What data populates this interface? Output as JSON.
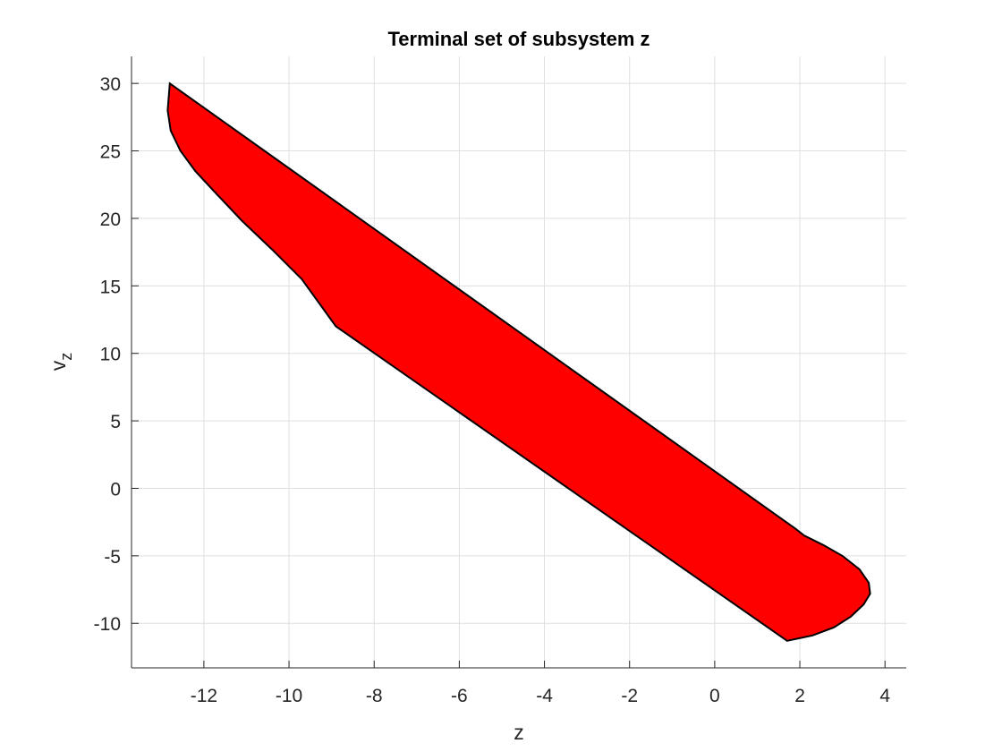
{
  "chart_data": {
    "type": "area",
    "title": "Terminal set of subsystem z",
    "xlabel": "z",
    "ylabel_main": "v",
    "ylabel_sub": "z",
    "xlim": [
      -13.7,
      4.5
    ],
    "ylim": [
      -13.3,
      32
    ],
    "xticks": [
      -12,
      -10,
      -8,
      -6,
      -4,
      -2,
      0,
      2,
      4
    ],
    "yticks": [
      -10,
      -5,
      0,
      5,
      10,
      15,
      20,
      25,
      30
    ],
    "grid": true,
    "fill_color": "#ff0000",
    "edge_color": "#000000",
    "series": [
      {
        "x": [
          -12.8,
          -12.85,
          -12.78,
          -12.55,
          -12.2,
          -11.7,
          -11.1,
          -10.4,
          -9.7,
          -8.9,
          1.7,
          2.3,
          2.8,
          3.2,
          3.5,
          3.65,
          3.62,
          3.4,
          3.0,
          2.55,
          2.1,
          1.9,
          -12.8
        ],
        "y": [
          30,
          28,
          26.5,
          25,
          23.5,
          21.8,
          19.8,
          17.7,
          15.5,
          12,
          -11.3,
          -10.9,
          -10.3,
          -9.5,
          -8.6,
          -7.8,
          -7.0,
          -6.0,
          -5.0,
          -4.2,
          -3.5,
          -3.0,
          30
        ]
      }
    ]
  }
}
